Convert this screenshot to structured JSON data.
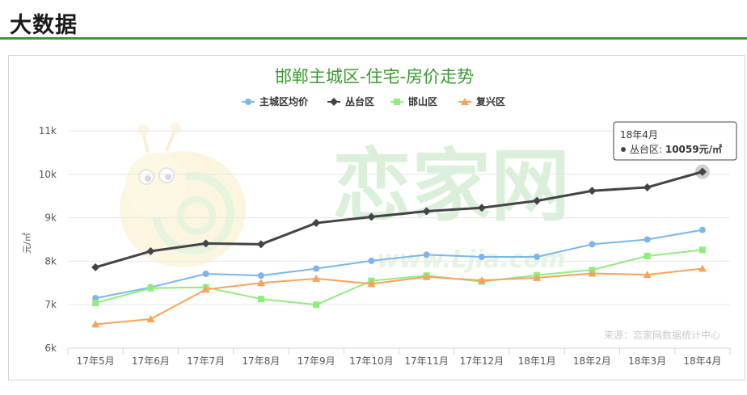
{
  "page": {
    "title": "大数据"
  },
  "chart_data": {
    "type": "line",
    "title": "邯郸主城区-住宅-房价走势",
    "ylabel": "元/㎡",
    "xlabel": "",
    "categories": [
      "17年5月",
      "17年6月",
      "17年7月",
      "17年8月",
      "17年9月",
      "17年10月",
      "17年11月",
      "17年12月",
      "18年1月",
      "18年2月",
      "18年3月",
      "18年4月"
    ],
    "ylim": [
      6000,
      11000
    ],
    "yticks": [
      {
        "value": 6000,
        "label": "6k"
      },
      {
        "value": 7000,
        "label": "7k"
      },
      {
        "value": 8000,
        "label": "8k"
      },
      {
        "value": 9000,
        "label": "9k"
      },
      {
        "value": 10000,
        "label": "10k"
      },
      {
        "value": 11000,
        "label": "11k"
      }
    ],
    "grid": true,
    "legend_position": "top-center",
    "series": [
      {
        "name": "主城区均价",
        "color": "#7cb5ec",
        "marker": "circle",
        "values": [
          7150,
          7400,
          7710,
          7670,
          7830,
          8010,
          8150,
          8100,
          8100,
          8390,
          8500,
          8720
        ]
      },
      {
        "name": "丛台区",
        "color": "#434348",
        "marker": "diamond",
        "values": [
          7860,
          8230,
          8410,
          8390,
          8880,
          9020,
          9150,
          9230,
          9390,
          9620,
          9700,
          10059
        ]
      },
      {
        "name": "邯山区",
        "color": "#90ed7d",
        "marker": "square",
        "values": [
          7040,
          7380,
          7400,
          7130,
          7000,
          7550,
          7670,
          7530,
          7680,
          7800,
          8120,
          8260
        ]
      },
      {
        "name": "复兴区",
        "color": "#f7a35c",
        "marker": "triangle",
        "values": [
          6550,
          6670,
          7350,
          7500,
          7600,
          7480,
          7640,
          7560,
          7620,
          7720,
          7690,
          7830
        ]
      }
    ],
    "tooltip": {
      "header": "18年4月",
      "series_label": "丛台区: ",
      "value_text": "10059元/㎡",
      "series_index": 1,
      "point_index": 11
    },
    "source": "来源：恋家网数据统计中心"
  },
  "watermark": {
    "text": "恋家网",
    "url": "www.Ljia.com"
  }
}
